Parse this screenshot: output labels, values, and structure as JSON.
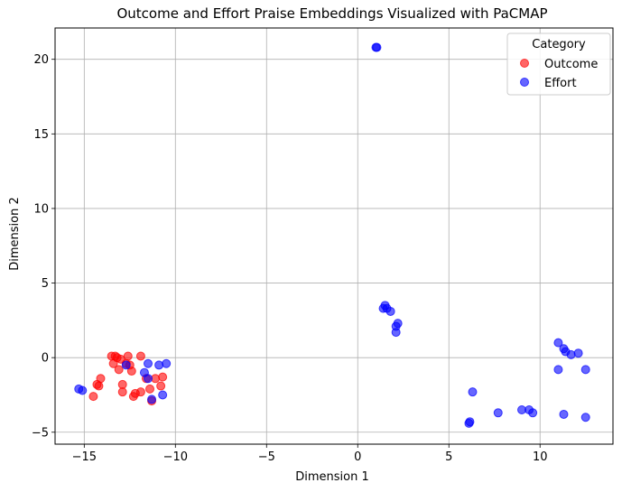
{
  "chart_data": {
    "type": "scatter",
    "title": "Outcome and Effort Praise Embeddings Visualized with PaCMAP",
    "xlabel": "Dimension 1",
    "ylabel": "Dimension 2",
    "xlim": [
      -16.6,
      14.0
    ],
    "ylim": [
      -5.8,
      22.1
    ],
    "xticks": [
      -15,
      -10,
      -5,
      0,
      5,
      10
    ],
    "yticks": [
      -5,
      0,
      5,
      10,
      15,
      20
    ],
    "grid": true,
    "legend": {
      "title": "Category",
      "position": "top-right"
    },
    "series": [
      {
        "name": "Outcome",
        "color": "#ff0000",
        "points": [
          [
            -14.5,
            -2.6
          ],
          [
            -14.3,
            -1.8
          ],
          [
            -14.2,
            -1.9
          ],
          [
            -14.1,
            -1.4
          ],
          [
            -13.5,
            0.1
          ],
          [
            -13.4,
            -0.4
          ],
          [
            -13.3,
            0.1
          ],
          [
            -13.2,
            0.0
          ],
          [
            -13.1,
            -0.8
          ],
          [
            -13.0,
            -0.1
          ],
          [
            -12.9,
            -1.8
          ],
          [
            -12.9,
            -2.3
          ],
          [
            -12.7,
            -0.4
          ],
          [
            -12.6,
            0.1
          ],
          [
            -12.5,
            -0.5
          ],
          [
            -12.4,
            -0.9
          ],
          [
            -12.3,
            -2.6
          ],
          [
            -12.2,
            -2.4
          ],
          [
            -11.9,
            -2.3
          ],
          [
            -11.9,
            0.1
          ],
          [
            -11.6,
            -1.4
          ],
          [
            -11.4,
            -2.1
          ],
          [
            -11.3,
            -2.9
          ],
          [
            -11.1,
            -1.4
          ],
          [
            -10.8,
            -1.9
          ],
          [
            -10.7,
            -1.3
          ]
        ]
      },
      {
        "name": "Effort",
        "color": "#0000ff",
        "points": [
          [
            -15.3,
            -2.1
          ],
          [
            -15.1,
            -2.2
          ],
          [
            -12.7,
            -0.5
          ],
          [
            -11.7,
            -1.0
          ],
          [
            -11.5,
            -0.4
          ],
          [
            -11.5,
            -1.4
          ],
          [
            -11.3,
            -2.8
          ],
          [
            -10.9,
            -0.5
          ],
          [
            -10.7,
            -2.5
          ],
          [
            -10.5,
            -0.4
          ],
          [
            1.0,
            20.8
          ],
          [
            1.05,
            20.8
          ],
          [
            1.4,
            3.3
          ],
          [
            1.5,
            3.5
          ],
          [
            1.6,
            3.3
          ],
          [
            1.8,
            3.1
          ],
          [
            2.1,
            2.1
          ],
          [
            2.1,
            1.7
          ],
          [
            2.2,
            2.3
          ],
          [
            6.1,
            -4.4
          ],
          [
            6.15,
            -4.3
          ],
          [
            6.3,
            -2.3
          ],
          [
            7.7,
            -3.7
          ],
          [
            9.0,
            -3.5
          ],
          [
            9.4,
            -3.5
          ],
          [
            9.6,
            -3.7
          ],
          [
            11.0,
            1.0
          ],
          [
            11.0,
            -0.8
          ],
          [
            11.3,
            0.6
          ],
          [
            11.3,
            -3.8
          ],
          [
            11.4,
            0.4
          ],
          [
            11.7,
            0.2
          ],
          [
            12.1,
            0.3
          ],
          [
            12.5,
            -0.8
          ],
          [
            12.5,
            -4.0
          ]
        ]
      }
    ]
  }
}
